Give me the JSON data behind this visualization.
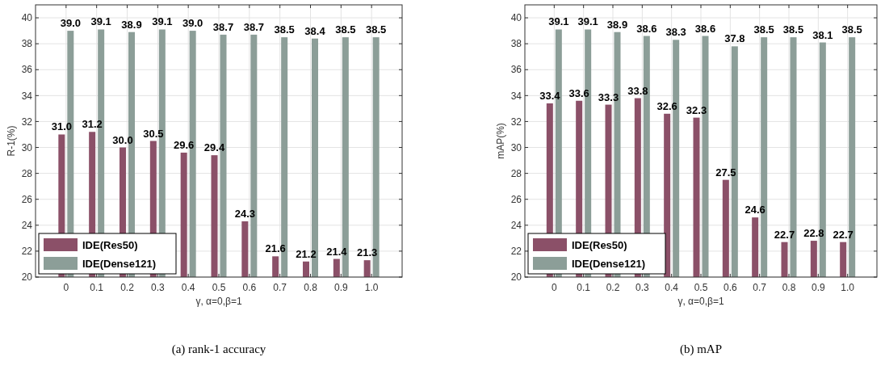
{
  "chart_data": [
    {
      "type": "bar",
      "xlabel": "γ, α=0,β=1",
      "ylabel": "R-1(%)",
      "categories": [
        "0",
        "0.1",
        "0.2",
        "0.3",
        "0.4",
        "0.5",
        "0.6",
        "0.7",
        "0.8",
        "0.9",
        "1.0"
      ],
      "series": [
        {
          "name": "IDE(Res50)",
          "color": "#8b5068",
          "values": [
            31.0,
            31.2,
            30.0,
            30.5,
            29.6,
            29.4,
            24.3,
            21.6,
            21.2,
            21.4,
            21.3
          ],
          "value_labels": [
            "31.0",
            "31.2",
            "30.0",
            "30.5",
            "29.6",
            "29.4",
            "24.3",
            "21.6",
            "21.2",
            "21.4",
            "21.3"
          ]
        },
        {
          "name": "IDE(Dense121)",
          "color": "#8c9e98",
          "values": [
            39.0,
            39.1,
            38.9,
            39.1,
            39.0,
            38.7,
            38.7,
            38.5,
            38.4,
            38.5,
            38.5
          ],
          "value_labels": [
            "39.0",
            "39.1",
            "38.9",
            "39.1",
            "39.0",
            "38.7",
            "38.7",
            "38.5",
            "38.4",
            "38.5",
            "38.5"
          ]
        }
      ],
      "ylim": [
        20,
        41
      ],
      "yticks": [
        20,
        22,
        24,
        26,
        28,
        30,
        32,
        34,
        36,
        38,
        40
      ],
      "grid": true,
      "legend": "bottom left",
      "annotations": [
        "(a) rank-1 accuracy"
      ]
    },
    {
      "type": "bar",
      "xlabel": "γ, α=0,β=1",
      "ylabel": "mAP(%)",
      "categories": [
        "0",
        "0.1",
        "0.2",
        "0.3",
        "0.4",
        "0.5",
        "0.6",
        "0.7",
        "0.8",
        "0.9",
        "1.0"
      ],
      "series": [
        {
          "name": "IDE(Res50)",
          "color": "#8b5068",
          "values": [
            33.4,
            33.6,
            33.3,
            33.8,
            32.6,
            32.3,
            27.5,
            24.6,
            22.7,
            22.8,
            22.7
          ],
          "value_labels": [
            "33.4",
            "33.6",
            "33.3",
            "33.8",
            "32.6",
            "32.3",
            "27.5",
            "24.6",
            "22.7",
            "22.8",
            "22.7"
          ]
        },
        {
          "name": "IDE(Dense121)",
          "color": "#8c9e98",
          "values": [
            39.1,
            39.1,
            38.9,
            38.6,
            38.3,
            38.6,
            37.8,
            38.5,
            38.5,
            38.1,
            38.5
          ],
          "value_labels": [
            "39.1",
            "39.1",
            "38.9",
            "38.6",
            "38.3",
            "38.6",
            "37.8",
            "38.5",
            "38.5",
            "38.1",
            "38.5"
          ]
        }
      ],
      "ylim": [
        20,
        41
      ],
      "yticks": [
        20,
        22,
        24,
        26,
        28,
        30,
        32,
        34,
        36,
        38,
        40
      ],
      "grid": true,
      "legend": "bottom left",
      "annotations": [
        "(b) mAP"
      ]
    }
  ]
}
